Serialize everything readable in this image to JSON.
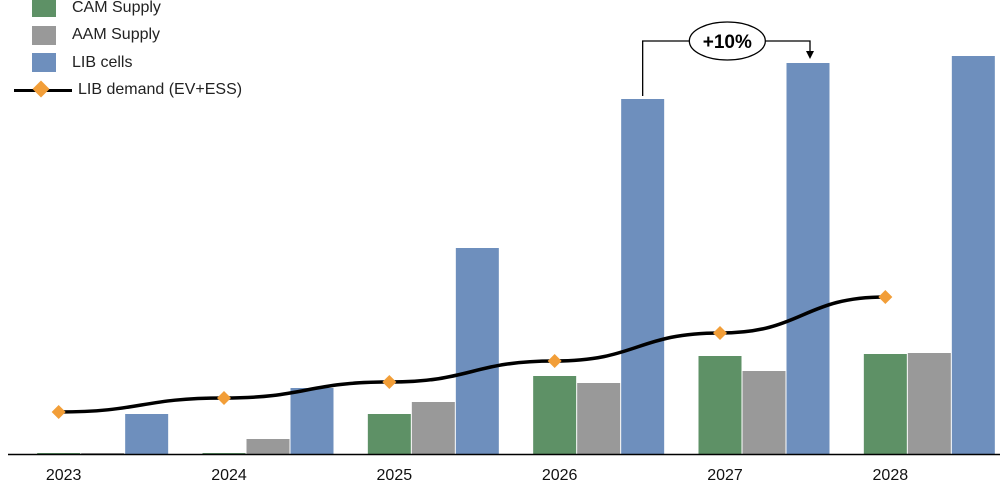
{
  "chart_data": {
    "type": "bar",
    "categories": [
      "2023",
      "2024",
      "2025",
      "2026",
      "2027",
      "2028"
    ],
    "series": [
      {
        "name": "CAM Supply",
        "kind": "bar",
        "color": "#5e9166",
        "values": [
          1,
          1,
          40,
          78,
          98,
          100
        ]
      },
      {
        "name": "AAM Supply",
        "kind": "bar",
        "color": "#999999",
        "values": [
          1,
          15,
          52,
          71,
          83,
          101
        ]
      },
      {
        "name": "LIB cells",
        "kind": "bar",
        "color": "#6e8fbd",
        "values": [
          40,
          66,
          206,
          355,
          391,
          398
        ]
      },
      {
        "name": "LIB demand (EV+ESS)",
        "kind": "line",
        "color": "#000000",
        "marker_color": "#f29e38",
        "values": [
          42,
          56,
          72,
          93,
          121,
          157
        ]
      }
    ],
    "annotation": {
      "text": "+10%",
      "from_category": "2026",
      "to_category": "2027"
    },
    "ylim": [
      0,
      420
    ],
    "title": "",
    "xlabel": "",
    "ylabel": "",
    "legend_position": "top-left",
    "grid": false
  }
}
